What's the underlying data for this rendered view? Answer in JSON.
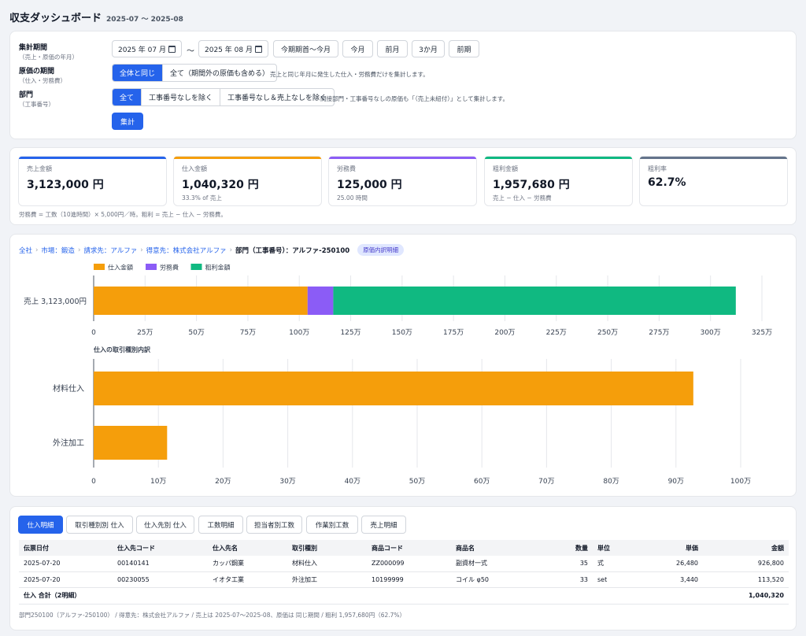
{
  "header": {
    "title": "収支ダッシュボード",
    "period": "2025-07 〜 2025-08"
  },
  "filters": {
    "period_label": "集計期間",
    "period_sub": "（売上・原価の年月）",
    "date_from": "2025 年 07 月",
    "date_to": "2025 年 08 月",
    "tilde": "〜",
    "quick_buttons": [
      "今期期首〜今月",
      "今月",
      "前月",
      "3か月",
      "前期"
    ],
    "cost_period_label": "原価の期間",
    "cost_period_sub": "（仕入・労務費）",
    "cost_options": [
      "全体と同じ",
      "全て（期間外の原価も含める）"
    ],
    "cost_hint": "売上と同じ年月に発生した仕入・労務費だけを集計します。",
    "dept_label": "部門",
    "dept_sub": "（工事番号）",
    "dept_options": [
      "全て",
      "工事番号なしを除く",
      "工事番号なし＆売上なしを除く"
    ],
    "dept_hint": "間接部門・工事番号なしの原価も「（売上未紐付）」として集計します。",
    "submit": "集計"
  },
  "kpis": [
    {
      "label": "売上金額",
      "value": "3,123,000 円",
      "note": "",
      "color": "#2563eb"
    },
    {
      "label": "仕入金額",
      "value": "1,040,320 円",
      "note": "33.3% of 売上",
      "color": "#f59e0b"
    },
    {
      "label": "労務費",
      "value": "125,000 円",
      "note": "25.00 時間",
      "color": "#8b5cf6"
    },
    {
      "label": "粗利金額",
      "value": "1,957,680 円",
      "note": "売上 − 仕入 − 労務費",
      "color": "#10b981"
    },
    {
      "label": "粗利率",
      "value": "62.7%",
      "note": "",
      "color": "#64748b"
    }
  ],
  "kpi_footnote": "労務費 = 工数（10進時間）× 5,000円／時。粗利 = 売上 − 仕入 − 労務費。",
  "breadcrumb": {
    "items": [
      "全社",
      "市場：鍛造",
      "請求先：アルファ",
      "得意先：株式会社アルファ"
    ],
    "current": "部門（工事番号）：アルファ-250100",
    "badge": "原価内訳明細"
  },
  "chart_data": [
    {
      "type": "bar",
      "orientation": "horizontal",
      "stacked": true,
      "categories": [
        "売上 3,123,000円"
      ],
      "series": [
        {
          "name": "仕入金額",
          "values": [
            1040320
          ],
          "color": "#f59e0b"
        },
        {
          "name": "労務費",
          "values": [
            125000
          ],
          "color": "#8b5cf6"
        },
        {
          "name": "粗利金額",
          "values": [
            1957680
          ],
          "color": "#10b981"
        }
      ],
      "xlim": [
        0,
        3250000
      ],
      "ticks": [
        0,
        250000,
        500000,
        750000,
        1000000,
        1250000,
        1500000,
        1750000,
        2000000,
        2250000,
        2500000,
        2750000,
        3000000,
        3250000
      ],
      "tick_labels": [
        "0",
        "25万",
        "50万",
        "75万",
        "100万",
        "125万",
        "150万",
        "175万",
        "200万",
        "225万",
        "250万",
        "275万",
        "300万",
        "325万"
      ],
      "legend": "top-left",
      "grid": true
    },
    {
      "type": "bar",
      "orientation": "horizontal",
      "title": "仕入の取引種別内訳",
      "categories": [
        "材料仕入",
        "外注加工"
      ],
      "values": [
        926800,
        113520
      ],
      "color": "#f59e0b",
      "xlim": [
        0,
        1000000
      ],
      "ticks": [
        0,
        100000,
        200000,
        300000,
        400000,
        500000,
        600000,
        700000,
        800000,
        900000,
        1000000
      ],
      "tick_labels": [
        "0",
        "10万",
        "20万",
        "30万",
        "40万",
        "50万",
        "60万",
        "70万",
        "80万",
        "90万",
        "100万"
      ],
      "grid": true
    }
  ],
  "tabs": [
    "仕入明細",
    "取引種別別 仕入",
    "仕入先別 仕入",
    "工数明細",
    "担当者別工数",
    "作業別工数",
    "売上明細"
  ],
  "table": {
    "columns": [
      "伝票日付",
      "仕入先コード",
      "仕入先名",
      "取引種別",
      "商品コード",
      "商品名",
      "数量",
      "単位",
      "単価",
      "金額"
    ],
    "rows": [
      [
        "2025-07-20",
        "00140141",
        "カッパ鋼業",
        "材料仕入",
        "ZZ000099",
        "副資材一式",
        "35",
        "式",
        "26,480",
        "926,800"
      ],
      [
        "2025-07-20",
        "00230055",
        "イオタ工業",
        "外注加工",
        "10199999",
        "コイル φ50",
        "33",
        "set",
        "3,440",
        "113,520"
      ]
    ],
    "total_label": "仕入 合計（2明細）",
    "total_value": "1,040,320"
  },
  "table_footnote": "部門250100（アルファ-250100） / 得意先：株式会社アルファ / 売上は 2025-07〜2025-08、原価は 同じ期間 / 粗利 1,957,680円（62.7%）"
}
